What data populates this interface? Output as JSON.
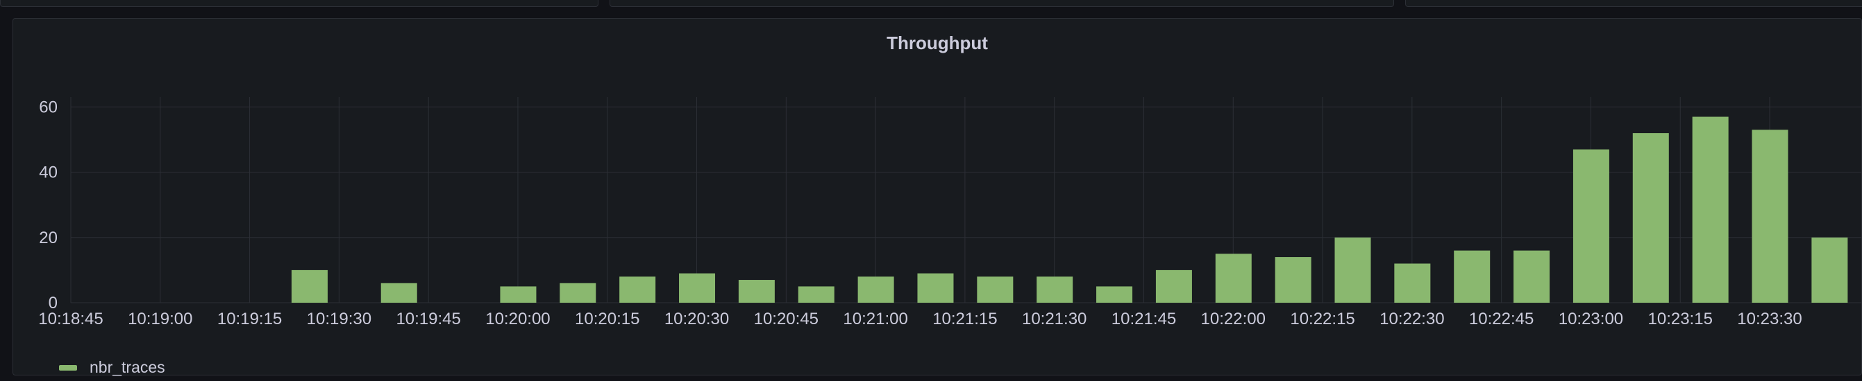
{
  "panel": {
    "title": "Throughput"
  },
  "colors": {
    "background": "#181b1f",
    "grid": "#2c2f36",
    "text": "#ccccdc",
    "bar": "#8ab86f"
  },
  "chart_data": {
    "type": "bar",
    "title": "Throughput",
    "xlabel": "",
    "ylabel": "",
    "ylim": [
      0,
      62
    ],
    "yticks": [
      0,
      20,
      40,
      60
    ],
    "x_tick_labels": [
      "10:18:45",
      "10:19:00",
      "10:19:15",
      "10:19:30",
      "10:19:45",
      "10:20:00",
      "10:20:15",
      "10:20:30",
      "10:20:45",
      "10:21:00",
      "10:21:15",
      "10:21:30",
      "10:21:45",
      "10:22:00",
      "10:22:15",
      "10:22:30",
      "10:22:45",
      "10:23:00",
      "10:23:15",
      "10:23:30"
    ],
    "categories": [
      "10:18:45",
      "10:18:50",
      "10:18:55",
      "10:19:00",
      "10:19:05",
      "10:19:10",
      "10:19:15",
      "10:19:20",
      "10:19:25",
      "10:19:30",
      "10:19:35",
      "10:19:40",
      "10:19:45",
      "10:19:50",
      "10:19:55",
      "10:20:00",
      "10:20:05",
      "10:20:10",
      "10:20:15",
      "10:20:20",
      "10:20:25",
      "10:20:30",
      "10:20:35",
      "10:20:40",
      "10:20:45",
      "10:20:50",
      "10:20:55",
      "10:21:00",
      "10:21:05",
      "10:21:10",
      "10:21:15",
      "10:21:20",
      "10:21:25",
      "10:21:30",
      "10:21:35",
      "10:21:40",
      "10:21:45",
      "10:21:50",
      "10:21:55",
      "10:22:00",
      "10:22:05",
      "10:22:10",
      "10:22:15",
      "10:22:20",
      "10:22:25",
      "10:22:30",
      "10:22:35",
      "10:22:40",
      "10:22:45",
      "10:22:50",
      "10:22:55",
      "10:23:00",
      "10:23:05",
      "10:23:10",
      "10:23:15",
      "10:23:20",
      "10:23:25",
      "10:23:30",
      "10:23:35",
      "10:23:40"
    ],
    "series": [
      {
        "name": "nbr_traces",
        "values": [
          0,
          0,
          0,
          0,
          0,
          0,
          0,
          0,
          10,
          0,
          0,
          6,
          0,
          0,
          0,
          5,
          0,
          6,
          0,
          8,
          0,
          9,
          0,
          7,
          0,
          5,
          0,
          8,
          0,
          9,
          0,
          8,
          0,
          8,
          0,
          5,
          0,
          10,
          0,
          15,
          0,
          14,
          0,
          20,
          0,
          12,
          0,
          16,
          0,
          16,
          0,
          47,
          0,
          52,
          0,
          57,
          0,
          53,
          0,
          20
        ]
      }
    ],
    "grid": true,
    "legend": "bottom-left"
  }
}
